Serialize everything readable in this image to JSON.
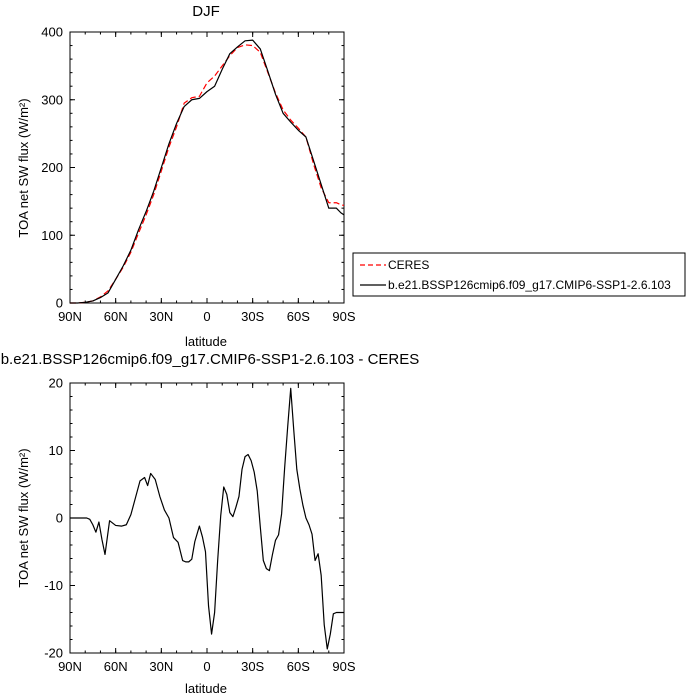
{
  "chart_data": [
    {
      "type": "line",
      "title": "DJF",
      "xlabel": "latitude",
      "ylabel": "TOA net SW flux (W/m²)",
      "ylim": [
        0,
        400
      ],
      "yticks": [
        0,
        100,
        200,
        300,
        400
      ],
      "xticks": [
        "90N",
        "60N",
        "30N",
        "0",
        "30S",
        "60S",
        "90S"
      ],
      "xlim": [
        90,
        -90
      ],
      "grid": false,
      "legend_position": "right",
      "series": [
        {
          "name": "CERES",
          "color": "#ff0000",
          "dash": "dashed",
          "x": [
            90,
            85,
            80,
            75,
            70,
            65,
            60,
            55,
            50,
            45,
            40,
            35,
            30,
            25,
            20,
            15,
            10,
            5,
            0,
            -5,
            -10,
            -15,
            -20,
            -25,
            -30,
            -35,
            -40,
            -45,
            -50,
            -55,
            -60,
            -65,
            -70,
            -75,
            -80,
            -85,
            -88,
            -90
          ],
          "y": [
            0,
            0,
            1,
            3,
            9,
            18,
            35,
            53,
            75,
            103,
            130,
            160,
            195,
            230,
            260,
            295,
            303,
            305,
            325,
            335,
            350,
            365,
            377,
            381,
            380,
            370,
            340,
            310,
            285,
            270,
            258,
            245,
            205,
            170,
            148,
            148,
            145,
            144
          ]
        },
        {
          "name": "b.e21.BSSP126cmip6.f09_g17.CMIP6-SSP1-2.6.103",
          "color": "#000000",
          "dash": "solid",
          "x": [
            90,
            85,
            80,
            75,
            70,
            65,
            60,
            55,
            50,
            45,
            40,
            35,
            30,
            25,
            20,
            15,
            10,
            5,
            0,
            -5,
            -10,
            -15,
            -20,
            -25,
            -30,
            -35,
            -40,
            -45,
            -50,
            -55,
            -60,
            -65,
            -70,
            -75,
            -80,
            -85,
            -88,
            -90
          ],
          "y": [
            0,
            0,
            1,
            3,
            8,
            15,
            35,
            55,
            78,
            108,
            135,
            165,
            200,
            235,
            265,
            290,
            300,
            302,
            312,
            320,
            345,
            368,
            378,
            387,
            388,
            375,
            342,
            308,
            280,
            267,
            255,
            245,
            210,
            175,
            140,
            140,
            133,
            130
          ]
        }
      ]
    },
    {
      "type": "line",
      "title": "b.e21.BSSP126cmip6.f09_g17.CMIP6-SSP1-2.6.103 - CERES",
      "xlabel": "latitude",
      "ylabel": "TOA net SW flux (W/m²)",
      "ylim": [
        -20,
        20
      ],
      "yticks": [
        -20,
        -10,
        0,
        10,
        20
      ],
      "xticks": [
        "90N",
        "60N",
        "30N",
        "0",
        "30S",
        "60S",
        "90S"
      ],
      "xlim": [
        90,
        -90
      ],
      "grid": false,
      "series": [
        {
          "color": "#000000",
          "x": [
            90,
            86,
            82,
            79,
            77,
            75,
            73,
            71,
            69,
            67,
            64,
            60,
            56,
            53,
            50,
            47,
            44,
            41,
            39,
            37,
            34,
            31,
            28,
            25,
            22,
            19,
            16,
            14,
            12,
            10,
            8,
            5,
            3,
            1,
            -1,
            -3,
            -5,
            -7,
            -9,
            -11,
            -13,
            -15,
            -17,
            -19,
            -21,
            -23,
            -25,
            -27,
            -29,
            -31,
            -33,
            -35,
            -37,
            -39,
            -41,
            -43,
            -45,
            -47,
            -49,
            -51,
            -53,
            -55,
            -57,
            -59,
            -61,
            -63,
            -65,
            -67,
            -69,
            -71,
            -73,
            -75,
            -77,
            -79,
            -81,
            -83,
            -85,
            -87,
            -88,
            -90
          ],
          "y": [
            0,
            0,
            0,
            0,
            -0.2,
            -1,
            -2.1,
            -0.6,
            -3.2,
            -5.4,
            -0.4,
            -1.1,
            -1.2,
            -1,
            0.5,
            3,
            5.5,
            6,
            4.8,
            6.6,
            5.7,
            3.2,
            1.2,
            0,
            -2.9,
            -3.6,
            -6.3,
            -6.5,
            -6.5,
            -6.1,
            -3.5,
            -1.2,
            -2.8,
            -5,
            -13,
            -17.2,
            -14,
            -6.3,
            0.3,
            4.6,
            3.5,
            0.8,
            0.2,
            1.6,
            3.2,
            7.2,
            9.1,
            9.4,
            8.5,
            6.8,
            4,
            -1.3,
            -6.3,
            -7.5,
            -7.8,
            -5.4,
            -3.3,
            -2.5,
            0.6,
            7.4,
            13.5,
            19.2,
            13,
            7.2,
            4.3,
            1.9,
            0,
            -1,
            -2.4,
            -6.3,
            -5.3,
            -8.5,
            -15.8,
            -19.4,
            -17.2,
            -14.2,
            -14,
            -14,
            -14,
            -14
          ]
        }
      ]
    }
  ]
}
